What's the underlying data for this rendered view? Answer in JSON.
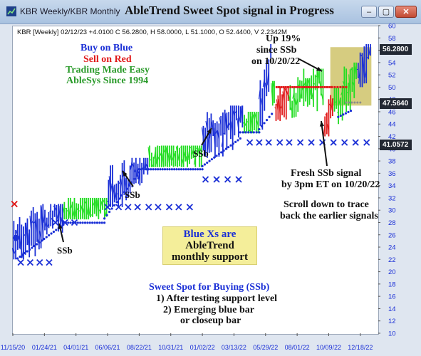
{
  "window": {
    "tab_title": "KBR Weekly/KBR Monthly",
    "chart_title": "AbleTrend Sweet Spot signal in Progress",
    "btn_min": "–",
    "btn_max": "▢",
    "btn_close": "✕",
    "app_icon": "chart-app-icon"
  },
  "info_line": "KBR [Weekly] 02/12/23  +4.0100 C 56.2800, H 58.0000, L 51.1000, O 52.4400, V 2.2342M",
  "annotations": {
    "buy_on_blue": "Buy on Blue",
    "sell_on_red": "Sell on Red",
    "trading_made_easy": "Trading Made Easy",
    "ablesys": "AbleSys Since 1994",
    "up_line1": "Up 19%",
    "up_line2": "since SSb",
    "up_line3": "on 10/20/22",
    "fresh_line1": "Fresh SSb signal",
    "fresh_line2": "by 3pm ET on 10/20/22",
    "scroll_line1": "Scroll down to trace",
    "scroll_line2": "back the earlier signals",
    "blue_xs_line1": "Blue Xs are",
    "blue_xs_line2": "AbleTrend",
    "blue_xs_line3": "monthly support",
    "sweet_title": "Sweet Spot for Buying (SSb)",
    "sweet_line1": "1) After testing support level",
    "sweet_line2": "2) Emerging blue bar",
    "sweet_line3": "or closeup bar",
    "ssb_1": "SSb",
    "ssb_2": "SSb",
    "ssb_3": "SSb"
  },
  "price_tags": {
    "last": "56.2800",
    "mid": "47.5640",
    "low": "41.0572"
  },
  "colors": {
    "blue_bar": "#1a2fd6",
    "green_bar": "#22dd22",
    "red_bar": "#e01818",
    "blue_x": "#1a2fd6",
    "red_x": "#e01818",
    "support_dots": "#1a2fd6",
    "gray_dots": "#8a8a8a",
    "highlight": "#cfc36a",
    "axis_text": "#1a2fd6",
    "annotation_blue": "#1a2fd6",
    "annotation_red": "#e01818",
    "annotation_green": "#2a9a2a"
  },
  "chart_data": {
    "type": "ohlc-bar",
    "title": "AbleTrend Sweet Spot signal in Progress",
    "ylim": [
      10,
      60
    ],
    "y_ticks": [
      10,
      12,
      14,
      16,
      18,
      20,
      22,
      24,
      26,
      28,
      30,
      32,
      34,
      36,
      38,
      40,
      42,
      44,
      46,
      48,
      50,
      52,
      54,
      56,
      58,
      60
    ],
    "x_ticks": [
      "11/15/20",
      "01/24/21",
      "04/01/21",
      "06/06/21",
      "08/22/21",
      "10/31/21",
      "01/02/22",
      "03/13/22",
      "05/29/22",
      "08/01/22",
      "10/09/22",
      "12/18/22"
    ],
    "segments": [
      {
        "color": "blue",
        "start": 0,
        "end": 1.6,
        "lo": 22.0,
        "hi": 31.0
      },
      {
        "color": "green",
        "start": 1.6,
        "end": 3.0,
        "lo": 28.5,
        "hi": 32.0
      },
      {
        "color": "blue",
        "start": 3.0,
        "end": 4.3,
        "lo": 30.5,
        "hi": 38.5
      },
      {
        "color": "green",
        "start": 4.3,
        "end": 6.0,
        "lo": 37.0,
        "hi": 40.5
      },
      {
        "color": "blue",
        "start": 6.0,
        "end": 7.3,
        "lo": 38.5,
        "hi": 47.0
      },
      {
        "color": "green",
        "start": 7.3,
        "end": 7.8,
        "lo": 42.5,
        "hi": 46.0
      },
      {
        "color": "blue",
        "start": 7.8,
        "end": 8.2,
        "lo": 43.0,
        "hi": 57.0
      },
      {
        "color": "green",
        "start": 8.2,
        "end": 8.3,
        "lo": 47.0,
        "hi": 51.0
      },
      {
        "color": "red",
        "start": 8.3,
        "end": 8.75,
        "lo": 44.5,
        "hi": 50.0
      },
      {
        "color": "green",
        "start": 8.75,
        "end": 9.85,
        "lo": 45.0,
        "hi": 53.0
      },
      {
        "color": "red",
        "start": 9.85,
        "end": 10.15,
        "lo": 42.0,
        "hi": 49.0
      },
      {
        "color": "green",
        "start": 10.15,
        "end": 10.9,
        "lo": 44.0,
        "hi": 54.0
      },
      {
        "color": "blue",
        "start": 10.9,
        "end": 11.35,
        "lo": 50.0,
        "hi": 57.0
      }
    ],
    "support_dots_weekly": [
      {
        "start": 0.15,
        "end": 1.6,
        "from": 22.5,
        "to": 28.0
      },
      {
        "start": 1.6,
        "end": 2.9,
        "from": 28.3,
        "to": 28.3
      },
      {
        "start": 2.9,
        "end": 4.0,
        "from": 29.0,
        "to": 36.5
      },
      {
        "start": 4.0,
        "end": 6.0,
        "from": 37.0,
        "to": 37.0
      },
      {
        "start": 6.0,
        "end": 7.2,
        "from": 37.5,
        "to": 42.0
      },
      {
        "start": 7.2,
        "end": 7.8,
        "from": 43.0,
        "to": 43.0
      },
      {
        "start": 7.8,
        "end": 8.2,
        "from": 43.5,
        "to": 46.0
      },
      {
        "start": 10.3,
        "end": 10.7,
        "from": 45.5,
        "to": 46.5
      }
    ],
    "resistance_dots_weekly": [
      {
        "start": 8.35,
        "end": 10.1,
        "value": 50.0
      },
      {
        "start": 10.1,
        "end": 10.55,
        "value": 50.0
      }
    ],
    "gray_dots": [
      {
        "start": 10.55,
        "end": 11.0,
        "value": 47.5
      }
    ],
    "blue_x_monthly": [
      {
        "x": [
          0.25,
          0.55,
          0.85,
          1.15
        ],
        "value": 21.5
      },
      {
        "x": [
          1.35,
          1.65,
          1.95
        ],
        "value": 28.0
      },
      {
        "x": [
          3.0,
          3.35,
          3.65,
          3.95,
          4.3,
          4.6,
          4.95,
          5.25,
          5.6
        ],
        "value": 30.5
      },
      {
        "x": [
          6.1,
          6.45,
          6.8,
          7.15
        ],
        "value": 35.0
      },
      {
        "x": [
          7.5,
          7.8,
          8.1,
          8.45,
          8.75,
          9.1,
          9.45,
          9.8,
          10.15,
          10.5,
          10.85,
          11.2
        ],
        "value": 41.0
      }
    ],
    "red_x_monthly": [
      {
        "x": 0.05,
        "value": 31.0
      }
    ],
    "signal_circle": {
      "x": 0.1,
      "value": 25.5
    },
    "highlight_zone": {
      "x_start": 10.05,
      "x_end": 11.35,
      "low": 47.0,
      "high": 56.5
    }
  }
}
